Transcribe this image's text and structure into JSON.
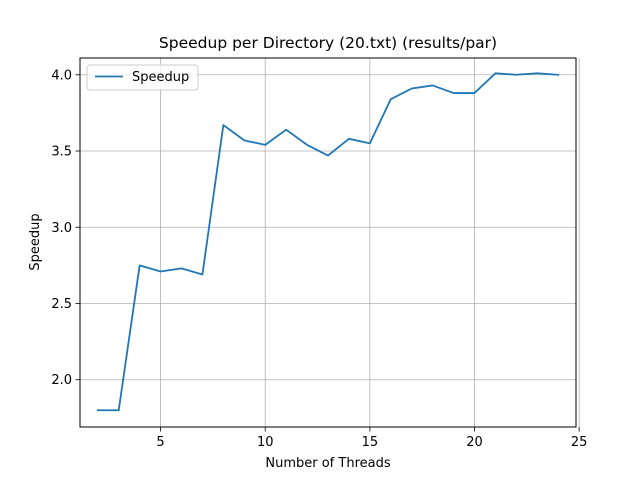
{
  "chart_data": {
    "type": "line",
    "title": "Speedup per Directory (20.txt) (results/par)",
    "xlabel": "Number of Threads",
    "ylabel": "Speedup",
    "xlim": [
      1.15,
      24.85
    ],
    "ylim": [
      1.69,
      4.11
    ],
    "xticks": [
      5,
      10,
      15,
      20,
      25
    ],
    "yticks": [
      2.0,
      2.5,
      3.0,
      3.5,
      4.0
    ],
    "xtick_labels": [
      "5",
      "10",
      "15",
      "20",
      "25"
    ],
    "ytick_labels": [
      "2.0",
      "2.5",
      "3.0",
      "3.5",
      "4.0"
    ],
    "grid": true,
    "legend": {
      "placement": "top-left",
      "entries": [
        "Speedup"
      ]
    },
    "series": [
      {
        "name": "Speedup",
        "color": "#1f77b4",
        "x": [
          2,
          3,
          4,
          5,
          6,
          7,
          8,
          9,
          10,
          11,
          12,
          13,
          14,
          15,
          16,
          17,
          18,
          19,
          20,
          21,
          22,
          23,
          24
        ],
        "y": [
          1.8,
          1.8,
          2.75,
          2.71,
          2.73,
          2.69,
          3.67,
          3.57,
          3.54,
          3.64,
          3.54,
          3.47,
          3.58,
          3.55,
          3.84,
          3.91,
          3.93,
          3.88,
          3.88,
          4.01,
          4.0,
          4.01,
          4.0
        ]
      }
    ]
  }
}
